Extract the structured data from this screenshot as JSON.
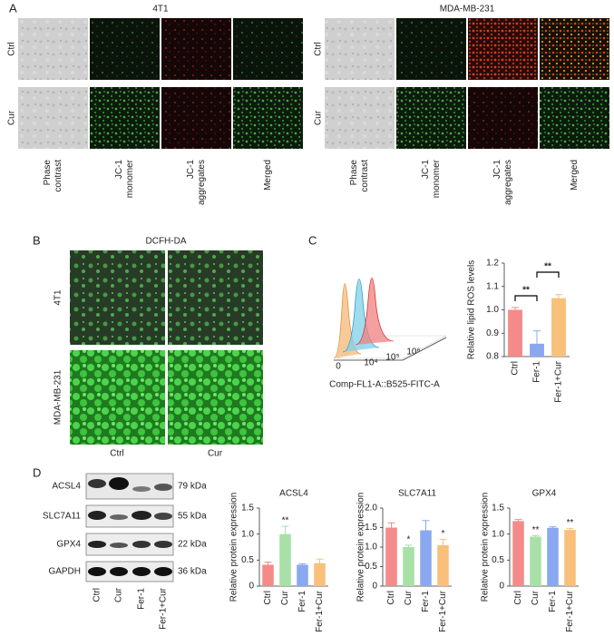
{
  "panel_labels": [
    "A",
    "B",
    "C",
    "D"
  ],
  "panel_a": {
    "groups": [
      "4T1",
      "MDA-MB-231"
    ],
    "rows": [
      "Ctrl",
      "Cur"
    ],
    "columns": [
      [
        "Phase",
        "contrast"
      ],
      [
        "JC-1",
        "monomer"
      ],
      [
        "JC-1",
        "aggregates"
      ],
      [
        "Merged"
      ]
    ]
  },
  "panel_b": {
    "title": "DCFH-DA",
    "rows": [
      "4T1",
      "MDA-MB-231"
    ],
    "columns": [
      "Ctrl",
      "Cur"
    ]
  },
  "panel_c": {
    "flow_xlabel": "Comp-FL1-A::B525-FITC-A",
    "flow_xticks": [
      "0",
      "10⁴",
      "10⁵",
      "10⁶"
    ]
  },
  "panel_d": {
    "proteins": [
      "ACSL4",
      "SLC7A11",
      "GPX4",
      "GAPDH"
    ],
    "sizes": [
      "79 kDa",
      "55 kDa",
      "22 kDa",
      "36 kDa"
    ],
    "lanes": [
      "Ctrl",
      "Cur",
      "Fer-1",
      "Fer-1+Cur"
    ]
  },
  "chart_data": [
    {
      "type": "bar",
      "ylabel": "Relative lipid ROS levels",
      "categories": [
        "Ctrl",
        "Fer-1",
        "Fer-1+Cur"
      ],
      "values": [
        1.0,
        0.855,
        1.05
      ],
      "errors": [
        0.01,
        0.055,
        0.015
      ],
      "colors": [
        "#f48a8a",
        "#8aa8f0",
        "#f8c07a"
      ],
      "ylim": [
        0.8,
        1.2
      ],
      "yticks": [
        0.8,
        0.9,
        {
          "value": 1,
          "label": "1.0"
        },
        1.1,
        1.2
      ],
      "annotations": [
        "**",
        "**"
      ]
    },
    {
      "type": "bar",
      "title": "ACSL4",
      "ylabel": "Relative protein expression",
      "categories": [
        "Ctrl",
        "Cur",
        "Fer-1",
        "Fer-1+Cur"
      ],
      "values": [
        0.41,
        1.0,
        0.41,
        0.44
      ],
      "errors": [
        0.05,
        0.15,
        0.02,
        0.08
      ],
      "colors": [
        "#f48a8a",
        "#a8e0a8",
        "#8aa8f0",
        "#f8c07a"
      ],
      "ylim": [
        0,
        1.5
      ],
      "yticks": [
        0,
        0.5,
        {
          "value": 1,
          "label": "1.0"
        },
        1.5
      ],
      "significance": [
        null,
        "**",
        null,
        null
      ]
    },
    {
      "type": "bar",
      "title": "SLC7A11",
      "ylabel": "Relative protein expression",
      "categories": [
        "Ctrl",
        "Cur",
        "Fer-1",
        "Fer-1+Cur"
      ],
      "values": [
        1.5,
        1.0,
        1.43,
        1.05
      ],
      "errors": [
        0.12,
        0.05,
        0.25,
        0.15
      ],
      "colors": [
        "#f48a8a",
        "#a8e0a8",
        "#8aa8f0",
        "#f8c07a"
      ],
      "ylim": [
        0,
        2
      ],
      "yticks": [
        0,
        0.5,
        {
          "value": 1,
          "label": "1.0"
        },
        1.5,
        {
          "value": 2,
          "label": "2.0"
        }
      ],
      "significance": [
        null,
        "*",
        null,
        "*"
      ]
    },
    {
      "type": "bar",
      "title": "GPX4",
      "ylabel": "Relative protein expression",
      "categories": [
        "Ctrl",
        "Cur",
        "Fer-1",
        "Fer-1+Cur"
      ],
      "values": [
        1.25,
        0.95,
        1.12,
        1.08
      ],
      "errors": [
        0.03,
        0.02,
        0.02,
        0.03
      ],
      "colors": [
        "#f48a8a",
        "#a8e0a8",
        "#8aa8f0",
        "#f8c07a"
      ],
      "ylim": [
        0,
        1.5
      ],
      "yticks": [
        0,
        0.5,
        {
          "value": 1,
          "label": "1.0"
        },
        1.5
      ],
      "significance": [
        null,
        "**",
        null,
        "**"
      ]
    }
  ]
}
